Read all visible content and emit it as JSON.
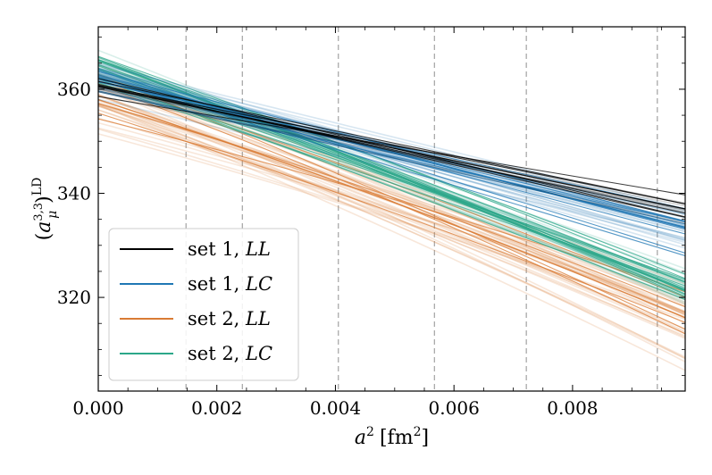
{
  "chart_data": {
    "type": "line",
    "title": "",
    "xlabel": "a² [fm²]",
    "ylabel": "(a_μ^{3,3})^{LD}",
    "xlim": [
      0.0,
      0.0099
    ],
    "ylim": [
      302,
      372
    ],
    "xticks": [
      0.0,
      0.002,
      0.004,
      0.006,
      0.008
    ],
    "xtick_labels": [
      "0.000",
      "0.002",
      "0.004",
      "0.006",
      "0.008"
    ],
    "yticks": [
      320,
      340,
      360
    ],
    "ytick_labels": [
      "320",
      "340",
      "360"
    ],
    "grid": false,
    "vertical_reference_lines": [
      0.00148,
      0.00243,
      0.00405,
      0.00567,
      0.00722,
      0.00943
    ],
    "legend_position": "lower-left",
    "series": [
      {
        "name": "set 1, LL",
        "label_prefix": "set 1, ",
        "label_italic": "LL",
        "color": "#000000",
        "type": "linear",
        "center_start": 360.5,
        "center_end": 337.0,
        "spread_start": 1.5,
        "spread_end": 2.0,
        "n_samples": 12,
        "curvature": 0
      },
      {
        "name": "set 1, LC",
        "label_prefix": "set 1, ",
        "label_italic": "LC",
        "color": "#1f77b4",
        "type": "linear",
        "center_start": 362.0,
        "center_end": 333.5,
        "spread_start": 3.0,
        "spread_end": 4.0,
        "n_samples": 40,
        "curvature": 0
      },
      {
        "name": "set 2, LL",
        "label_prefix": "set 2, ",
        "label_italic": "LL",
        "color": "#d97b34",
        "type": "curved",
        "center_start": 358.0,
        "center_end": 318.5,
        "spread_start": 5.5,
        "spread_end": 6.5,
        "n_samples": 40,
        "curvature": 3.0
      },
      {
        "name": "set 2, LC",
        "label_prefix": "set 2, ",
        "label_italic": "LC",
        "color": "#2ca789",
        "type": "curved",
        "center_start": 364.0,
        "center_end": 322.5,
        "spread_start": 3.0,
        "spread_end": 3.0,
        "n_samples": 40,
        "curvature": 1.5
      }
    ]
  }
}
